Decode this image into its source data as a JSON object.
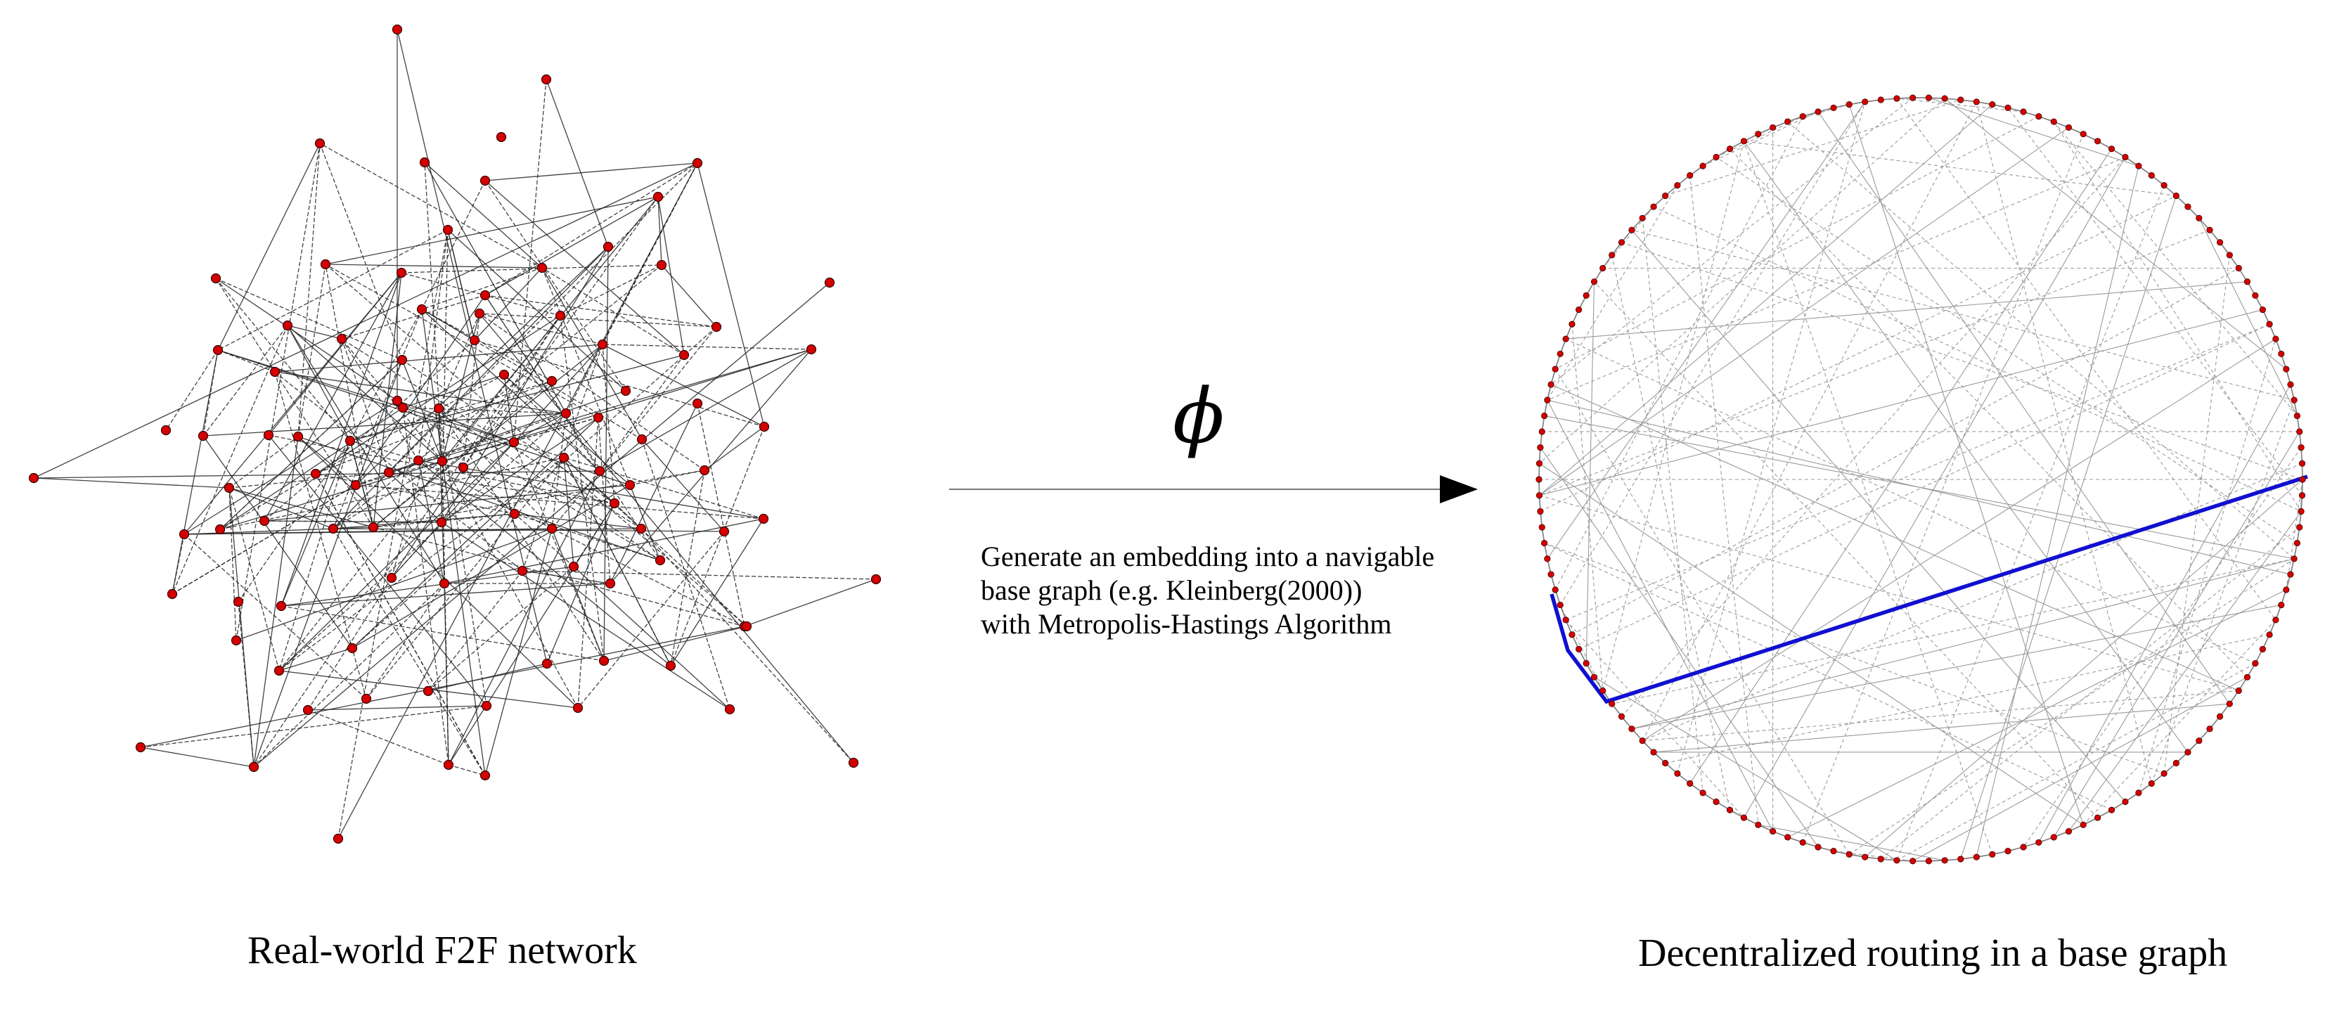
{
  "left_graph": {
    "caption": "Real-world F2F network",
    "node_color": "#d40000"
  },
  "arrow": {
    "symbol": "ϕ",
    "description_lines": [
      "Generate an embedding into a navigable",
      "base graph (e.g. Kleinberg(2000))",
      "with Metropolis-Hastings Algorithm"
    ]
  },
  "right_graph": {
    "caption": "Decentralized routing in a base graph",
    "node_color": "#d40000",
    "route_color": "#1010d0"
  }
}
